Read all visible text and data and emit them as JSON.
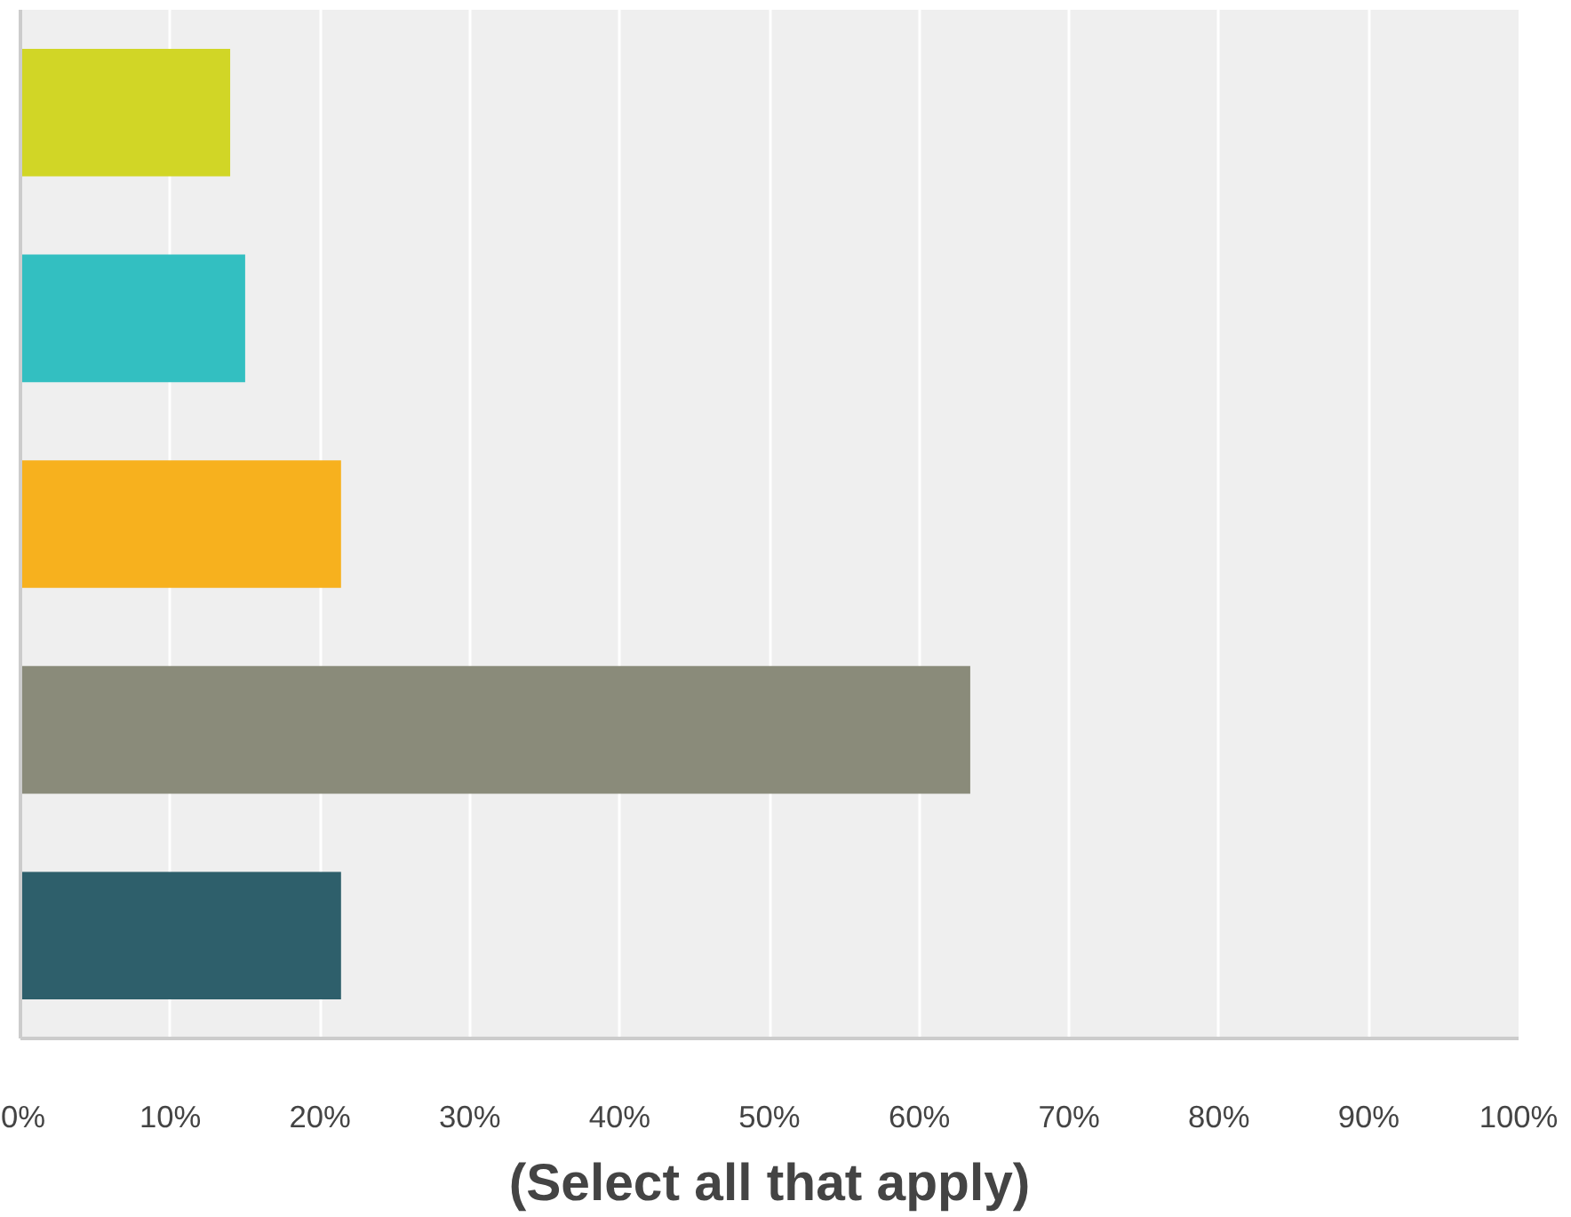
{
  "chart_data": {
    "type": "bar",
    "orientation": "horizontal",
    "xlabel": "(Select all that apply)",
    "categories": [
      null,
      null,
      null,
      null,
      null
    ],
    "values": [
      14,
      15,
      21.4,
      63.4,
      21.4
    ],
    "colors": [
      "#d1d626",
      "#33bfc1",
      "#f7b11e",
      "#8a8b7a",
      "#2e5f6b"
    ],
    "xlim": [
      0,
      100
    ],
    "xticks": [
      {
        "value": 0,
        "label": "0%"
      },
      {
        "value": 10,
        "label": "10%"
      },
      {
        "value": 20,
        "label": "20%"
      },
      {
        "value": 30,
        "label": "30%"
      },
      {
        "value": 40,
        "label": "40%"
      },
      {
        "value": 50,
        "label": "50%"
      },
      {
        "value": 60,
        "label": "60%"
      },
      {
        "value": 70,
        "label": "70%"
      },
      {
        "value": 80,
        "label": "80%"
      },
      {
        "value": 90,
        "label": "90%"
      },
      {
        "value": 100,
        "label": "100%"
      }
    ],
    "grid": "x"
  }
}
